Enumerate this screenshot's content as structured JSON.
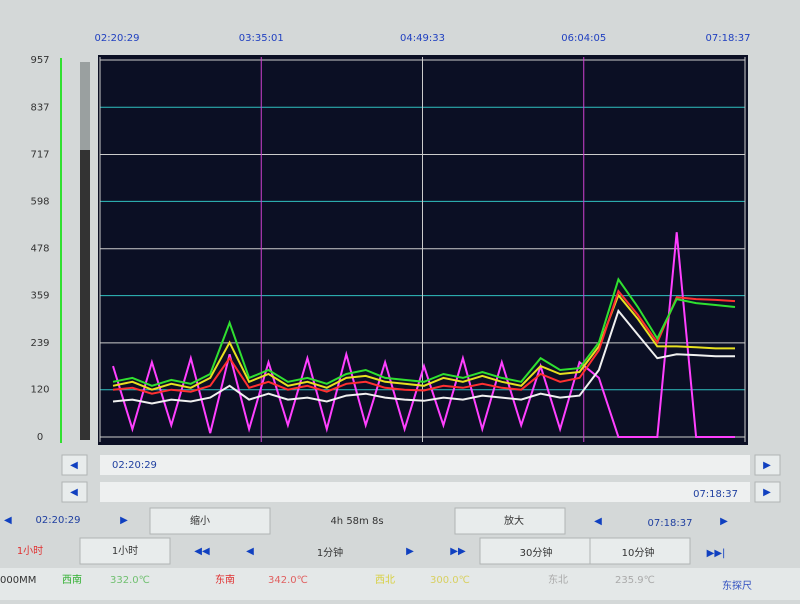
{
  "chart_data": {
    "type": "line",
    "xlim": [
      "02:20:29",
      "07:18:37"
    ],
    "xticks": [
      "02:20:29",
      "03:35:01",
      "04:49:33",
      "06:04:05",
      "07:18:37"
    ],
    "ylim": [
      0,
      957
    ],
    "yticks": [
      0,
      120,
      239,
      359,
      478,
      598,
      717,
      837,
      957
    ],
    "grid": true,
    "series": [
      {
        "color": "#ff40ff",
        "values": [
          180,
          20,
          190,
          30,
          200,
          10,
          210,
          20,
          190,
          30,
          200,
          20,
          210,
          30,
          190,
          20,
          180,
          30,
          200,
          20,
          190,
          30,
          180,
          20,
          190,
          150,
          0,
          0,
          0,
          520,
          0,
          0,
          0
        ]
      },
      {
        "color": "#f0f0f0",
        "values": [
          90,
          95,
          85,
          95,
          90,
          100,
          130,
          95,
          110,
          95,
          100,
          90,
          105,
          110,
          100,
          95,
          92,
          100,
          95,
          105,
          100,
          95,
          110,
          100,
          105,
          170,
          320,
          260,
          200,
          210,
          208,
          205,
          205
        ]
      },
      {
        "color": "#e8e020",
        "values": [
          130,
          140,
          120,
          135,
          125,
          150,
          240,
          140,
          160,
          130,
          140,
          125,
          150,
          155,
          140,
          135,
          130,
          150,
          140,
          155,
          140,
          130,
          180,
          160,
          165,
          230,
          360,
          300,
          230,
          230,
          228,
          225,
          225
        ]
      },
      {
        "color": "#ff3030",
        "values": [
          120,
          125,
          110,
          120,
          115,
          130,
          200,
          125,
          140,
          120,
          130,
          115,
          135,
          140,
          125,
          120,
          118,
          130,
          125,
          135,
          125,
          120,
          160,
          140,
          150,
          220,
          370,
          310,
          240,
          355,
          350,
          348,
          345
        ]
      },
      {
        "color": "#30e030",
        "values": [
          140,
          150,
          130,
          145,
          135,
          160,
          290,
          150,
          170,
          140,
          150,
          135,
          160,
          170,
          150,
          145,
          140,
          160,
          150,
          165,
          150,
          140,
          200,
          170,
          175,
          240,
          400,
          330,
          250,
          350,
          340,
          335,
          330
        ]
      }
    ]
  },
  "scroll": {
    "start": "02:20:29",
    "end": "07:18:37"
  },
  "controls": {
    "start": "02:20:29",
    "zoom_out": "缩小",
    "span": "4h 58m 8s",
    "zoom_in": "放大",
    "end": "07:18:37",
    "step_active": "1小时",
    "step": "1小时",
    "minute": "1分钟",
    "thirty": "30分钟",
    "ten": "10分钟"
  },
  "status": {
    "unit": "000MM",
    "sw": "西南",
    "sw_value": "332.0℃",
    "se": "东南",
    "se_value": "342.0℃",
    "nw": "西北",
    "nw_value": "300.0℃",
    "ne": "东北",
    "ne_value": "235.9℃",
    "probe": "东探尺"
  }
}
